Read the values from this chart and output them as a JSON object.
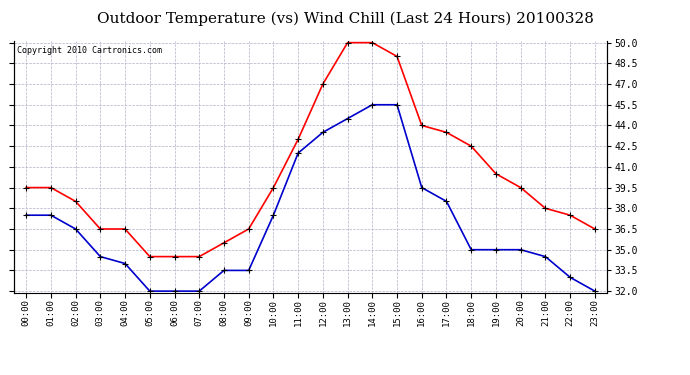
{
  "title": "Outdoor Temperature (vs) Wind Chill (Last 24 Hours) 20100328",
  "copyright": "Copyright 2010 Cartronics.com",
  "hours": [
    "00:00",
    "01:00",
    "02:00",
    "03:00",
    "04:00",
    "05:00",
    "06:00",
    "07:00",
    "08:00",
    "09:00",
    "10:00",
    "11:00",
    "12:00",
    "13:00",
    "14:00",
    "15:00",
    "16:00",
    "17:00",
    "18:00",
    "19:00",
    "20:00",
    "21:00",
    "22:00",
    "23:00"
  ],
  "outdoor_temp": [
    39.5,
    39.5,
    38.5,
    36.5,
    36.5,
    34.5,
    34.5,
    34.5,
    35.5,
    36.5,
    39.5,
    43.0,
    47.0,
    50.0,
    50.0,
    49.0,
    44.0,
    43.5,
    42.5,
    40.5,
    39.5,
    38.0,
    37.5,
    36.5
  ],
  "wind_chill": [
    37.5,
    37.5,
    36.5,
    34.5,
    34.0,
    32.0,
    32.0,
    32.0,
    33.5,
    33.5,
    37.5,
    42.0,
    43.5,
    44.5,
    45.5,
    45.5,
    39.5,
    38.5,
    35.0,
    35.0,
    35.0,
    34.5,
    33.0,
    32.0
  ],
  "temp_color": "#ff0000",
  "chill_color": "#0000cc",
  "ylim_min": 32.0,
  "ylim_max": 50.0,
  "yticks": [
    32.0,
    33.5,
    35.0,
    36.5,
    38.0,
    39.5,
    41.0,
    42.5,
    44.0,
    45.5,
    47.0,
    48.5,
    50.0
  ],
  "background_color": "#ffffff",
  "plot_bg_color": "#ffffff",
  "grid_color": "#b0b0c8",
  "title_fontsize": 11,
  "copyright_fontsize": 6,
  "marker": "+",
  "marker_color": "#000000",
  "marker_size": 5,
  "linewidth": 1.2
}
